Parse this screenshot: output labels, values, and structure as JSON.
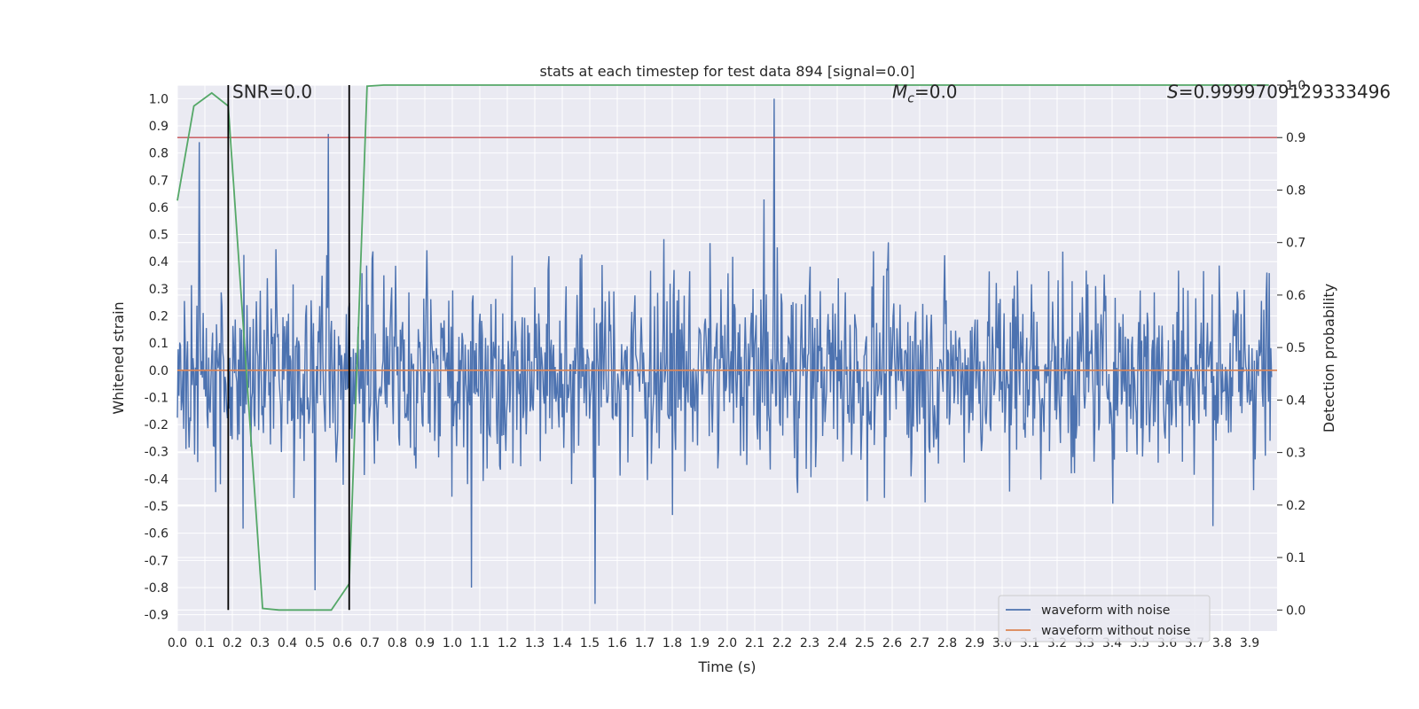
{
  "chart_data": {
    "type": "line",
    "title": "stats at each timestep for test data 894 [signal=0.0]",
    "xlabel": "Time (s)",
    "ylabel": "Whitened strain",
    "y2label": "Detection probability",
    "xlim": [
      0.0,
      4.0
    ],
    "ylim": [
      -0.96,
      1.05
    ],
    "y2lim": [
      -0.04,
      1.0
    ],
    "xticks": [
      "0.0",
      "0.1",
      "0.2",
      "0.3",
      "0.4",
      "0.5",
      "0.6",
      "0.7",
      "0.8",
      "0.9",
      "1.0",
      "1.1",
      "1.2",
      "1.3",
      "1.4",
      "1.5",
      "1.6",
      "1.7",
      "1.8",
      "1.9",
      "2.0",
      "2.1",
      "2.2",
      "2.3",
      "2.4",
      "2.5",
      "2.6",
      "2.7",
      "2.8",
      "2.9",
      "3.0",
      "3.1",
      "3.2",
      "3.3",
      "3.4",
      "3.5",
      "3.6",
      "3.7",
      "3.8",
      "3.9"
    ],
    "yticks": [
      "1.0",
      "0.9",
      "0.8",
      "0.7",
      "0.6",
      "0.5",
      "0.4",
      "0.3",
      "0.2",
      "0.1",
      "0.0",
      "-0.1",
      "-0.2",
      "-0.3",
      "-0.4",
      "-0.5",
      "-0.6",
      "-0.7",
      "-0.8",
      "-0.9"
    ],
    "y2ticks": [
      "1.0",
      "0.9",
      "0.8",
      "0.7",
      "0.6",
      "0.5",
      "0.4",
      "0.3",
      "0.2",
      "0.1",
      "0.0"
    ],
    "annotations": {
      "snr": "SNR=0.0",
      "mc_symbol": "M",
      "mc_sub": "c",
      "mc_value": "=0.0",
      "s_symbol": "S",
      "s_value": "=0.9999709129333496"
    },
    "threshold_probability": 0.9,
    "vertical_markers_s": [
      0.185,
      0.625
    ],
    "series": [
      {
        "name": "waveform with noise",
        "axis": "left",
        "color": "#4c72b0",
        "kind": "noise",
        "approx_range": [
          -0.86,
          1.0
        ],
        "sample_count": 1400,
        "notable_peaks": [
          [
            0.08,
            0.84
          ],
          [
            0.55,
            0.87
          ],
          [
            2.17,
            1.0
          ],
          [
            1.52,
            -0.86
          ],
          [
            1.07,
            -0.8
          ],
          [
            0.5,
            -0.81
          ]
        ]
      },
      {
        "name": "waveform without noise",
        "axis": "left",
        "color": "#dd8452",
        "x": [
          0.0,
          4.0
        ],
        "y": [
          0.0,
          0.0
        ]
      },
      {
        "name": "detection probability",
        "axis": "right",
        "color": "#55a868",
        "x": [
          0.0,
          0.06,
          0.125,
          0.185,
          0.31,
          0.37,
          0.56,
          0.625,
          0.69,
          0.75,
          1.0,
          1.5,
          2.0,
          2.5,
          3.0,
          3.5,
          3.97
        ],
        "y": [
          0.78,
          0.96,
          0.985,
          0.96,
          0.003,
          0.0,
          0.0,
          0.05,
          0.998,
          1.0,
          1.0,
          1.0,
          1.0,
          1.0,
          1.0,
          1.0,
          1.0
        ]
      }
    ],
    "legend": {
      "position": "lower-right",
      "entries": [
        {
          "label": "waveform with noise",
          "color": "#4c72b0"
        },
        {
          "label": "waveform without noise",
          "color": "#dd8452"
        }
      ]
    },
    "colors": {
      "background": "#eaeaf2",
      "grid": "#ffffff",
      "threshold": "#c44e52",
      "marker": "#000000"
    }
  }
}
